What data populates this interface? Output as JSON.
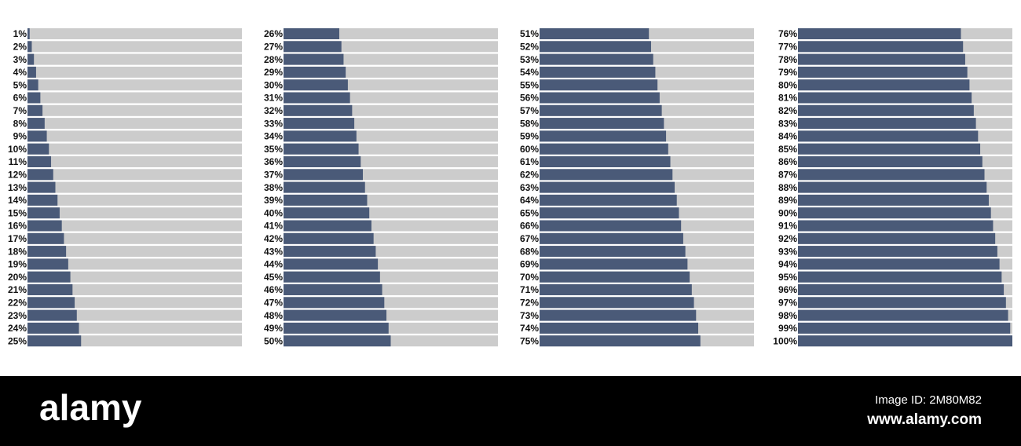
{
  "chart_data": [
    {
      "type": "bar",
      "orientation": "horizontal",
      "color": "#4a5a78",
      "track_color": "#cccccc",
      "xlim": [
        0,
        100
      ],
      "values": [
        1,
        2,
        3,
        4,
        5,
        6,
        7,
        8,
        9,
        10,
        11,
        12,
        13,
        14,
        15,
        16,
        17,
        18,
        19,
        20,
        21,
        22,
        23,
        24,
        25
      ],
      "value_labels": [
        "1%",
        "2%",
        "3%",
        "4%",
        "5%",
        "6%",
        "7%",
        "8%",
        "9%",
        "10%",
        "11%",
        "12%",
        "13%",
        "14%",
        "15%",
        "16%",
        "17%",
        "18%",
        "19%",
        "20%",
        "21%",
        "22%",
        "23%",
        "24%",
        "25%"
      ]
    },
    {
      "type": "bar",
      "orientation": "horizontal",
      "color": "#4a5a78",
      "track_color": "#cccccc",
      "xlim": [
        0,
        100
      ],
      "values": [
        26,
        27,
        28,
        29,
        30,
        31,
        32,
        33,
        34,
        35,
        36,
        37,
        38,
        39,
        40,
        41,
        42,
        43,
        44,
        45,
        46,
        47,
        48,
        49,
        50
      ],
      "value_labels": [
        "26%",
        "27%",
        "28%",
        "29%",
        "30%",
        "31%",
        "32%",
        "33%",
        "34%",
        "35%",
        "36%",
        "37%",
        "38%",
        "39%",
        "40%",
        "41%",
        "42%",
        "43%",
        "44%",
        "45%",
        "46%",
        "47%",
        "48%",
        "49%",
        "50%"
      ]
    },
    {
      "type": "bar",
      "orientation": "horizontal",
      "color": "#4a5a78",
      "track_color": "#cccccc",
      "xlim": [
        0,
        100
      ],
      "values": [
        51,
        52,
        53,
        54,
        55,
        56,
        57,
        58,
        59,
        60,
        61,
        62,
        63,
        64,
        65,
        66,
        67,
        68,
        69,
        70,
        71,
        72,
        73,
        74,
        75
      ],
      "value_labels": [
        "51%",
        "52%",
        "53%",
        "54%",
        "55%",
        "56%",
        "57%",
        "58%",
        "59%",
        "60%",
        "61%",
        "62%",
        "63%",
        "64%",
        "65%",
        "66%",
        "67%",
        "68%",
        "69%",
        "70%",
        "71%",
        "72%",
        "73%",
        "74%",
        "75%"
      ]
    },
    {
      "type": "bar",
      "orientation": "horizontal",
      "color": "#4a5a78",
      "track_color": "#cccccc",
      "xlim": [
        0,
        100
      ],
      "values": [
        76,
        77,
        78,
        79,
        80,
        81,
        82,
        83,
        84,
        85,
        86,
        87,
        88,
        89,
        90,
        91,
        92,
        93,
        94,
        95,
        96,
        97,
        98,
        99,
        100
      ],
      "value_labels": [
        "76%",
        "77%",
        "78%",
        "79%",
        "80%",
        "81%",
        "82%",
        "83%",
        "84%",
        "85%",
        "86%",
        "87%",
        "88%",
        "89%",
        "90%",
        "91%",
        "92%",
        "93%",
        "94%",
        "95%",
        "96%",
        "97%",
        "98%",
        "99%",
        "100%"
      ]
    }
  ],
  "watermark": {
    "logo": "alamy",
    "image_id": "Image ID: 2M80M82",
    "url": "www.alamy.com"
  }
}
